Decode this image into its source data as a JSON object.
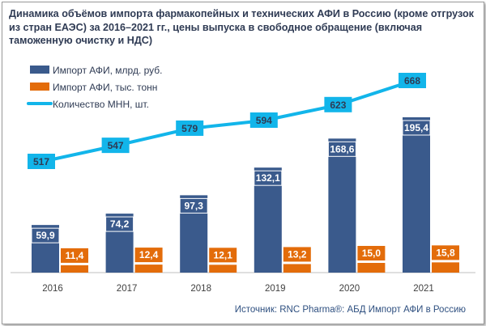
{
  "chart_data": {
    "type": "bar",
    "title": "Динамика объёмов импорта фармакопейных и технических АФИ в Россию (кроме отгрузок из стран ЕАЭС) за 2016–2021 гг., цены выпуска в свободное обращение (включая таможенную очистку и НДС)",
    "categories": [
      "2016",
      "2017",
      "2018",
      "2019",
      "2020",
      "2021"
    ],
    "series": [
      {
        "name": "Импорт АФИ, млрд. руб.",
        "type": "bar",
        "color": "#3a5a8c",
        "values": [
          59.9,
          74.2,
          97.3,
          132.1,
          168.6,
          195.4
        ],
        "labels": [
          "59,9",
          "74,2",
          "97,3",
          "132,1",
          "168,6",
          "195,4"
        ]
      },
      {
        "name": "Импорт АФИ, тыс. тонн",
        "type": "bar",
        "color": "#e36c0a",
        "values": [
          11.4,
          12.4,
          12.1,
          13.2,
          15.0,
          15.8
        ],
        "labels": [
          "11,4",
          "12,4",
          "12,1",
          "13,2",
          "15,0",
          "15,8"
        ]
      },
      {
        "name": "Количество МНН, шт.",
        "type": "line",
        "color": "#12b5ea",
        "values": [
          517,
          547,
          579,
          594,
          623,
          668
        ],
        "labels": [
          "517",
          "547",
          "579",
          "594",
          "623",
          "668"
        ]
      }
    ],
    "legend_position": "top-left",
    "grid": false
  },
  "source": "Источник: RNC Pharma®: АБД Импорт АФИ в Россию"
}
